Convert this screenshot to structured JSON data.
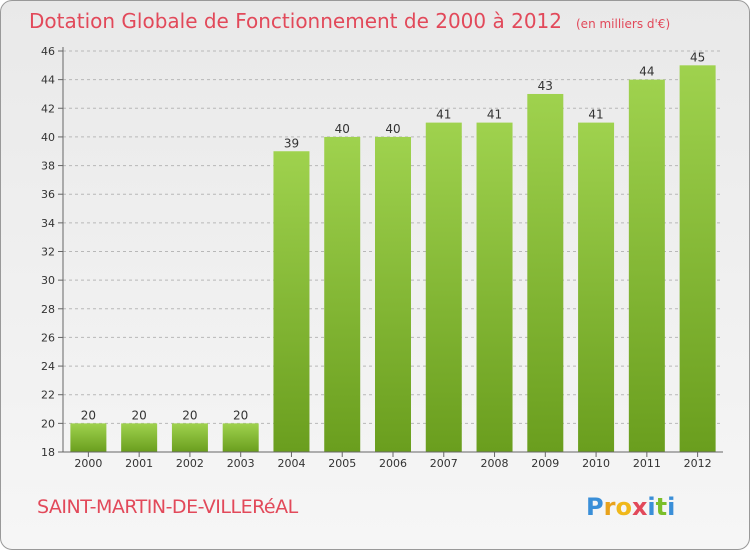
{
  "header": {
    "title": "Dotation Globale de Fonctionnement de 2000 à 2012",
    "unit": "(en milliers d'€)"
  },
  "footer": {
    "commune": "SAINT-MARTIN-DE-VILLERéAL",
    "logo_letters": [
      "P",
      "r",
      "o",
      "x",
      "i",
      "t",
      "i"
    ]
  },
  "colors": {
    "title": "#e2495a",
    "bar_top": "#9fd24e",
    "bar_bottom": "#6a9e1e",
    "grid": "#b8b8b8",
    "logo": [
      "#3a8fd8",
      "#e8a21c",
      "#f0b81a",
      "#e2495a",
      "#3a8fd8",
      "#7bbf2a",
      "#3a8fd8"
    ]
  },
  "chart_data": {
    "type": "bar",
    "categories": [
      "2000",
      "2001",
      "2002",
      "2003",
      "2004",
      "2005",
      "2006",
      "2007",
      "2008",
      "2009",
      "2010",
      "2011",
      "2012"
    ],
    "values": [
      20,
      20,
      20,
      20,
      39,
      40,
      40,
      41,
      41,
      43,
      41,
      44,
      45
    ],
    "data_labels": [
      "20",
      "20",
      "20",
      "20",
      "39",
      "40",
      "40",
      "41",
      "41",
      "43",
      "41",
      "44",
      "45"
    ],
    "yticks": [
      "18",
      "20",
      "22",
      "24",
      "26",
      "28",
      "30",
      "32",
      "34",
      "36",
      "38",
      "40",
      "42",
      "44",
      "46"
    ],
    "ylim": [
      18,
      46
    ],
    "grid": true
  }
}
